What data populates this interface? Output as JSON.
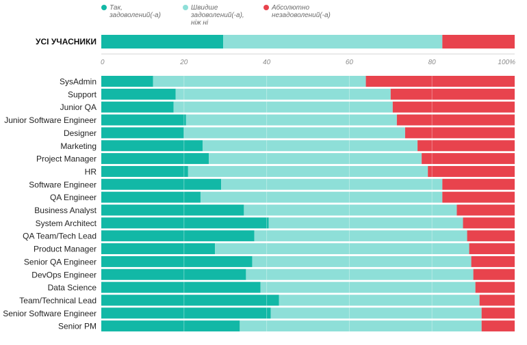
{
  "chart_data": {
    "type": "bar",
    "stacked": true,
    "orientation": "horizontal",
    "xlim": [
      0,
      100
    ],
    "ticks": [
      "0",
      "20",
      "40",
      "60",
      "80",
      "100%"
    ],
    "tick_values": [
      0,
      20,
      40,
      60,
      80,
      100
    ],
    "legend": [
      {
        "key": "yes",
        "lines": [
          "Так,",
          "задоволений(-а)"
        ],
        "color": "#12b8a6"
      },
      {
        "key": "rather",
        "lines": [
          "Швидше",
          "задоволений(-а),",
          "ніж ні"
        ],
        "color": "#8edfd8"
      },
      {
        "key": "no",
        "lines": [
          "Абсолютно",
          "незадоволений(-а)"
        ],
        "color": "#e8434d"
      }
    ],
    "summary": {
      "label": "УСІ УЧАСНИКИ",
      "yes": 29.5,
      "rather": 53,
      "no": 17.5
    },
    "categories": [
      "SysAdmin",
      "Support",
      "Junior QA",
      "Junior Software Engineer",
      "Designer",
      "Marketing",
      "Project Manager",
      "HR",
      "Software Engineer",
      "QA Engineer",
      "Business Analyst",
      "System Architect",
      "QA Team/Tech Lead",
      "Product Manager",
      "Senior QA Engineer",
      "DevOps Engineer",
      "Data Science",
      "Team/Technical Lead",
      "Senior Software Engineer",
      "Senior PM"
    ],
    "series": [
      {
        "name": "Так, задоволений(-а)",
        "values": [
          12.5,
          18,
          17.5,
          20.5,
          20,
          24.5,
          26,
          21,
          29,
          24,
          34.5,
          40.5,
          37,
          27.5,
          36.5,
          35,
          38.5,
          43,
          41,
          33.5
        ]
      },
      {
        "name": "Швидше задоволений(-а), ніж ні",
        "values": [
          51.5,
          52,
          53,
          51,
          53.5,
          52,
          51.5,
          58,
          53.5,
          58.5,
          51.5,
          47,
          51.5,
          61.5,
          53,
          55,
          52,
          48.5,
          51,
          58.5
        ]
      },
      {
        "name": "Абсолютно незадоволений(-а)",
        "values": [
          36,
          30,
          29.5,
          28.5,
          26.5,
          23.5,
          22.5,
          21,
          17.5,
          17.5,
          14,
          12.5,
          11.5,
          11,
          10.5,
          10,
          9.5,
          8.5,
          8,
          8
        ]
      }
    ]
  }
}
